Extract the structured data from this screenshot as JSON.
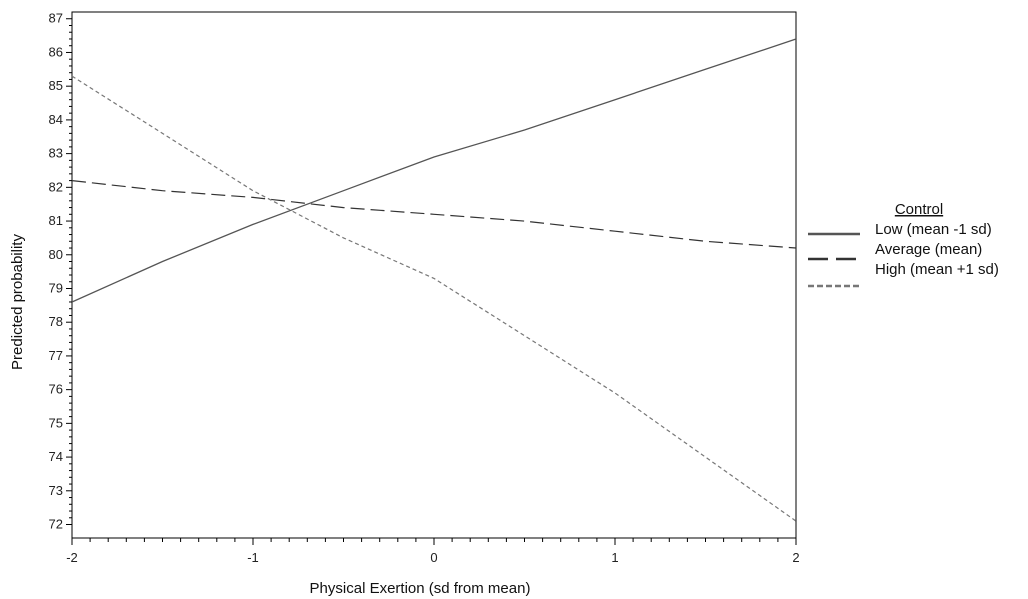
{
  "chart_data": {
    "type": "line",
    "title": "",
    "xlabel": "Physical Exertion (sd from mean)",
    "ylabel": "Predicted probability",
    "xlim": [
      -2,
      2
    ],
    "ylim": [
      71.6,
      87.2
    ],
    "x_ticks": [
      -2,
      -1,
      0,
      1,
      2
    ],
    "x_tick_labels": [
      "-2",
      "-1",
      "0",
      "1",
      "2"
    ],
    "y_ticks": [
      72,
      73,
      74,
      75,
      76,
      77,
      78,
      79,
      80,
      81,
      82,
      83,
      84,
      85,
      86,
      87
    ],
    "y_tick_labels": [
      "72",
      "73",
      "74",
      "75",
      "76",
      "77",
      "78",
      "79",
      "80",
      "81",
      "82",
      "83",
      "84",
      "85",
      "86",
      "87"
    ],
    "grid": false,
    "legend": {
      "title": "Control",
      "position": "right"
    },
    "x": [
      -2,
      -1.5,
      -1,
      -0.5,
      0,
      0.5,
      1,
      1.5,
      2
    ],
    "series": [
      {
        "name": "Low (mean -1 sd)",
        "style": "solid",
        "color": "#555555",
        "values": [
          78.6,
          79.8,
          80.9,
          81.9,
          82.9,
          83.7,
          84.6,
          85.5,
          86.4
        ]
      },
      {
        "name": "Average (mean)",
        "style": "long-dash",
        "color": "#333333",
        "values": [
          82.2,
          81.9,
          81.7,
          81.4,
          81.2,
          81.0,
          80.7,
          80.4,
          80.2
        ]
      },
      {
        "name": "High (mean +1 sd)",
        "style": "short-dash",
        "color": "#777777",
        "values": [
          85.3,
          83.6,
          81.9,
          80.5,
          79.3,
          77.6,
          75.9,
          74.0,
          72.1
        ]
      }
    ]
  }
}
